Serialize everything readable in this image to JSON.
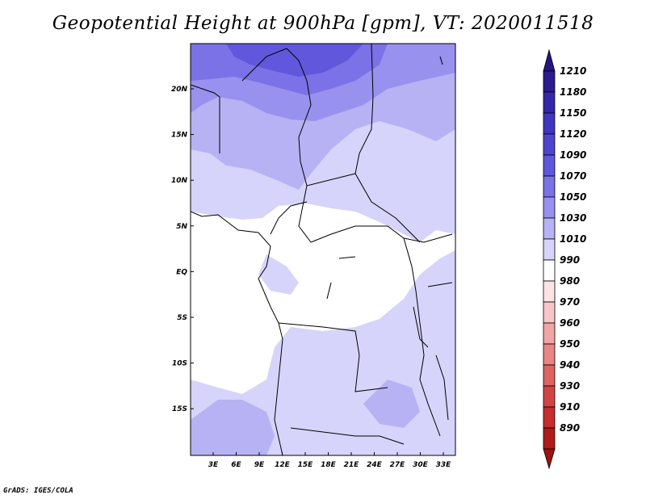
{
  "title": "Geopotential Height at 900hPa [gpm], VT: 2020011518",
  "credit": "GrADS: IGES/COLA",
  "map": {
    "lon_ticks": [
      "3E",
      "6E",
      "9E",
      "12E",
      "15E",
      "18E",
      "21E",
      "24E",
      "27E",
      "30E",
      "33E"
    ],
    "lat_ticks": [
      "20N",
      "15N",
      "10N",
      "5N",
      "EQ",
      "5S",
      "10S",
      "15S"
    ]
  },
  "legend": {
    "levels": [
      {
        "label": "1210",
        "color": "#2a1c8e"
      },
      {
        "label": "1180",
        "color": "#3428a8"
      },
      {
        "label": "1150",
        "color": "#3f35bf"
      },
      {
        "label": "1120",
        "color": "#4e45cf"
      },
      {
        "label": "1090",
        "color": "#6057dc"
      },
      {
        "label": "1070",
        "color": "#7a72e6"
      },
      {
        "label": "1050",
        "color": "#9891ee"
      },
      {
        "label": "1030",
        "color": "#b7b2f3"
      },
      {
        "label": "1010",
        "color": "#d6d4fa"
      },
      {
        "label": "990",
        "color": "#ffffff"
      },
      {
        "label": "980",
        "color": "#fde4e4"
      },
      {
        "label": "970",
        "color": "#f8c6c6"
      },
      {
        "label": "960",
        "color": "#f2a5a5"
      },
      {
        "label": "950",
        "color": "#e98585"
      },
      {
        "label": "940",
        "color": "#de6464"
      },
      {
        "label": "930",
        "color": "#d34545"
      },
      {
        "label": "910",
        "color": "#c62d2d"
      },
      {
        "label": "890",
        "color": "#b01c1c"
      }
    ],
    "top_color": "#241484",
    "bottom_color": "#a01010"
  }
}
